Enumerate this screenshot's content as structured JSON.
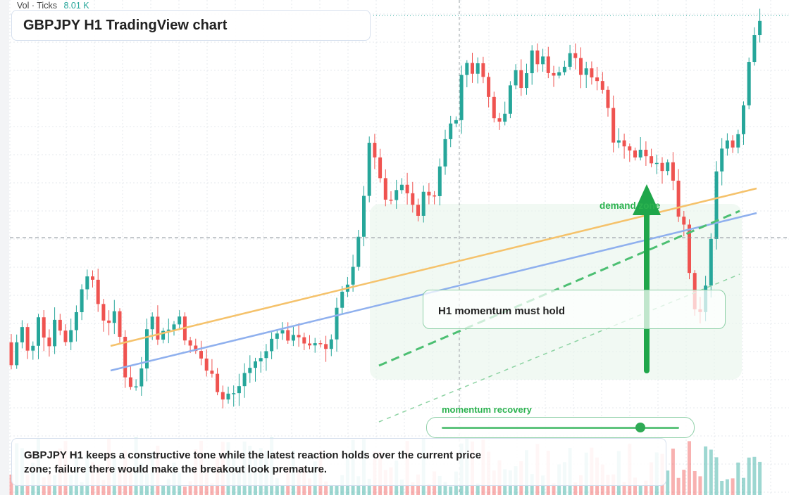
{
  "volume_legend": {
    "label": "Vol · Ticks",
    "value": "8.01 K"
  },
  "title": "GBPJPY H1 TradingView chart",
  "annotations": {
    "demand_zone_label": "demand zone",
    "momentum_label": "H1 momentum must hold",
    "recovery_label": "momentum recovery",
    "recovery_level": 0.86,
    "note": "GBPJPY H1 keeps a constructive tone while the latest reaction holds over the current price zone; failure there would make the breakout look premature."
  },
  "colors": {
    "up": "#26a69a",
    "down": "#ef5350",
    "trend_orange": "#f5c26b",
    "trend_blue": "#8fb0ee",
    "signal_green": "#1fa64a",
    "grid": "#e4e8ee"
  },
  "icons": [
    "up-arrow-icon",
    "crosshair-icon"
  ],
  "chart_data": {
    "type": "candlestick",
    "symbol": "GBPJPY",
    "timeframe": "H1",
    "candle_count": 140,
    "grid": true,
    "crosshair": true
  }
}
